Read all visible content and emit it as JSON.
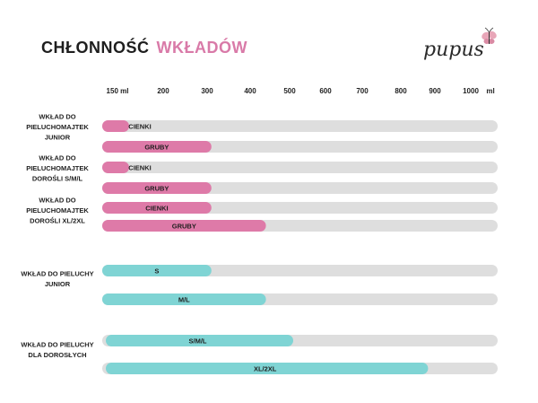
{
  "title": {
    "part1": "CHŁONNOŚĆ",
    "part2": "WKŁADÓW"
  },
  "logo_text": "pupus",
  "colors": {
    "pink": "#de7aa8",
    "teal": "#7fd4d4",
    "track": "#dedede",
    "title_accent": "#d97aa8"
  },
  "chart_data": {
    "type": "bar",
    "orientation": "horizontal",
    "x_unit": "ml",
    "xlim": [
      150,
      1000
    ],
    "ticks": [
      {
        "value": 150,
        "label": "150 ml"
      },
      {
        "value": 200,
        "label": "200"
      },
      {
        "value": 300,
        "label": "300"
      },
      {
        "value": 400,
        "label": "400"
      },
      {
        "value": 500,
        "label": "500"
      },
      {
        "value": 600,
        "label": "600"
      },
      {
        "value": 700,
        "label": "700"
      },
      {
        "value": 800,
        "label": "800"
      },
      {
        "value": 900,
        "label": "900"
      },
      {
        "value": 1000,
        "label": "1000"
      }
    ],
    "unit_label": "ml",
    "groups": [
      {
        "lines": [
          "WKŁAD DO",
          "PIELUCHOMAJTEK",
          "JUNIOR"
        ],
        "color": "pink",
        "bars": [
          {
            "label": "CIENKI",
            "value": 150
          },
          {
            "label": "GRUBY",
            "value": 310
          }
        ]
      },
      {
        "lines": [
          "WKŁAD DO",
          "PIELUCHOMAJTEK",
          "DOROŚLI S/M/L"
        ],
        "color": "pink",
        "bars": [
          {
            "label": "CIENKI",
            "value": 150
          },
          {
            "label": "GRUBY",
            "value": 310
          }
        ]
      },
      {
        "lines": [
          "WKŁAD DO",
          "PIELUCHOMAJTEK",
          "DOROŚLI XL/2XL"
        ],
        "color": "pink",
        "bars": [
          {
            "label": "CIENKI",
            "value": 310
          },
          {
            "label": "GRUBY",
            "value": 440
          }
        ]
      },
      {
        "lines": [
          "WKŁAD DO PIELUCHY",
          "JUNIOR"
        ],
        "color": "teal",
        "bars": [
          {
            "label": "S",
            "value": 310
          },
          {
            "label": "M/L",
            "value": 440
          }
        ]
      },
      {
        "lines": [
          "WKŁAD DO PIELUCHY",
          "DLA DOROSŁYCH"
        ],
        "color": "teal",
        "bars": [
          {
            "label": "S/M/L",
            "value": 510
          },
          {
            "label": "XL/2XL",
            "value": 880
          }
        ]
      }
    ]
  }
}
